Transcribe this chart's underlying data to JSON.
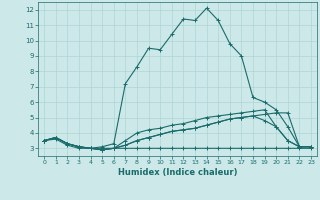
{
  "xlabel": "Humidex (Indice chaleur)",
  "xlim": [
    -0.5,
    23.5
  ],
  "ylim": [
    2.5,
    12.5
  ],
  "xticks": [
    0,
    1,
    2,
    3,
    4,
    5,
    6,
    7,
    8,
    9,
    10,
    11,
    12,
    13,
    14,
    15,
    16,
    17,
    18,
    19,
    20,
    21,
    22,
    23
  ],
  "yticks": [
    3,
    4,
    5,
    6,
    7,
    8,
    9,
    10,
    11,
    12
  ],
  "bg_color": "#cde8e8",
  "line_color": "#1a6b6b",
  "grid_color": "#aed4d4",
  "lines": [
    [
      3.5,
      3.7,
      3.3,
      3.1,
      3.0,
      3.1,
      3.3,
      7.2,
      8.3,
      9.5,
      9.4,
      10.4,
      11.4,
      11.3,
      12.1,
      11.3,
      9.8,
      9.0,
      6.3,
      6.0,
      5.5,
      4.4,
      3.1,
      3.1
    ],
    [
      3.5,
      3.7,
      3.3,
      3.1,
      3.0,
      2.9,
      3.0,
      3.5,
      4.0,
      4.2,
      4.3,
      4.5,
      4.6,
      4.8,
      5.0,
      5.1,
      5.2,
      5.3,
      5.4,
      5.5,
      4.4,
      3.5,
      3.1,
      3.1
    ],
    [
      3.5,
      3.7,
      3.3,
      3.1,
      3.0,
      2.9,
      3.0,
      3.2,
      3.5,
      3.7,
      3.9,
      4.1,
      4.2,
      4.3,
      4.5,
      4.7,
      4.9,
      5.0,
      5.1,
      5.2,
      5.3,
      5.3,
      3.1,
      3.1
    ],
    [
      3.5,
      3.7,
      3.3,
      3.1,
      3.0,
      2.9,
      3.0,
      3.2,
      3.5,
      3.7,
      3.9,
      4.1,
      4.2,
      4.3,
      4.5,
      4.7,
      4.9,
      5.0,
      5.1,
      4.8,
      4.4,
      3.5,
      3.1,
      3.1
    ],
    [
      3.5,
      3.6,
      3.2,
      3.0,
      3.0,
      3.0,
      3.0,
      3.0,
      3.0,
      3.0,
      3.0,
      3.0,
      3.0,
      3.0,
      3.0,
      3.0,
      3.0,
      3.0,
      3.0,
      3.0,
      3.0,
      3.0,
      3.0,
      3.0
    ]
  ]
}
